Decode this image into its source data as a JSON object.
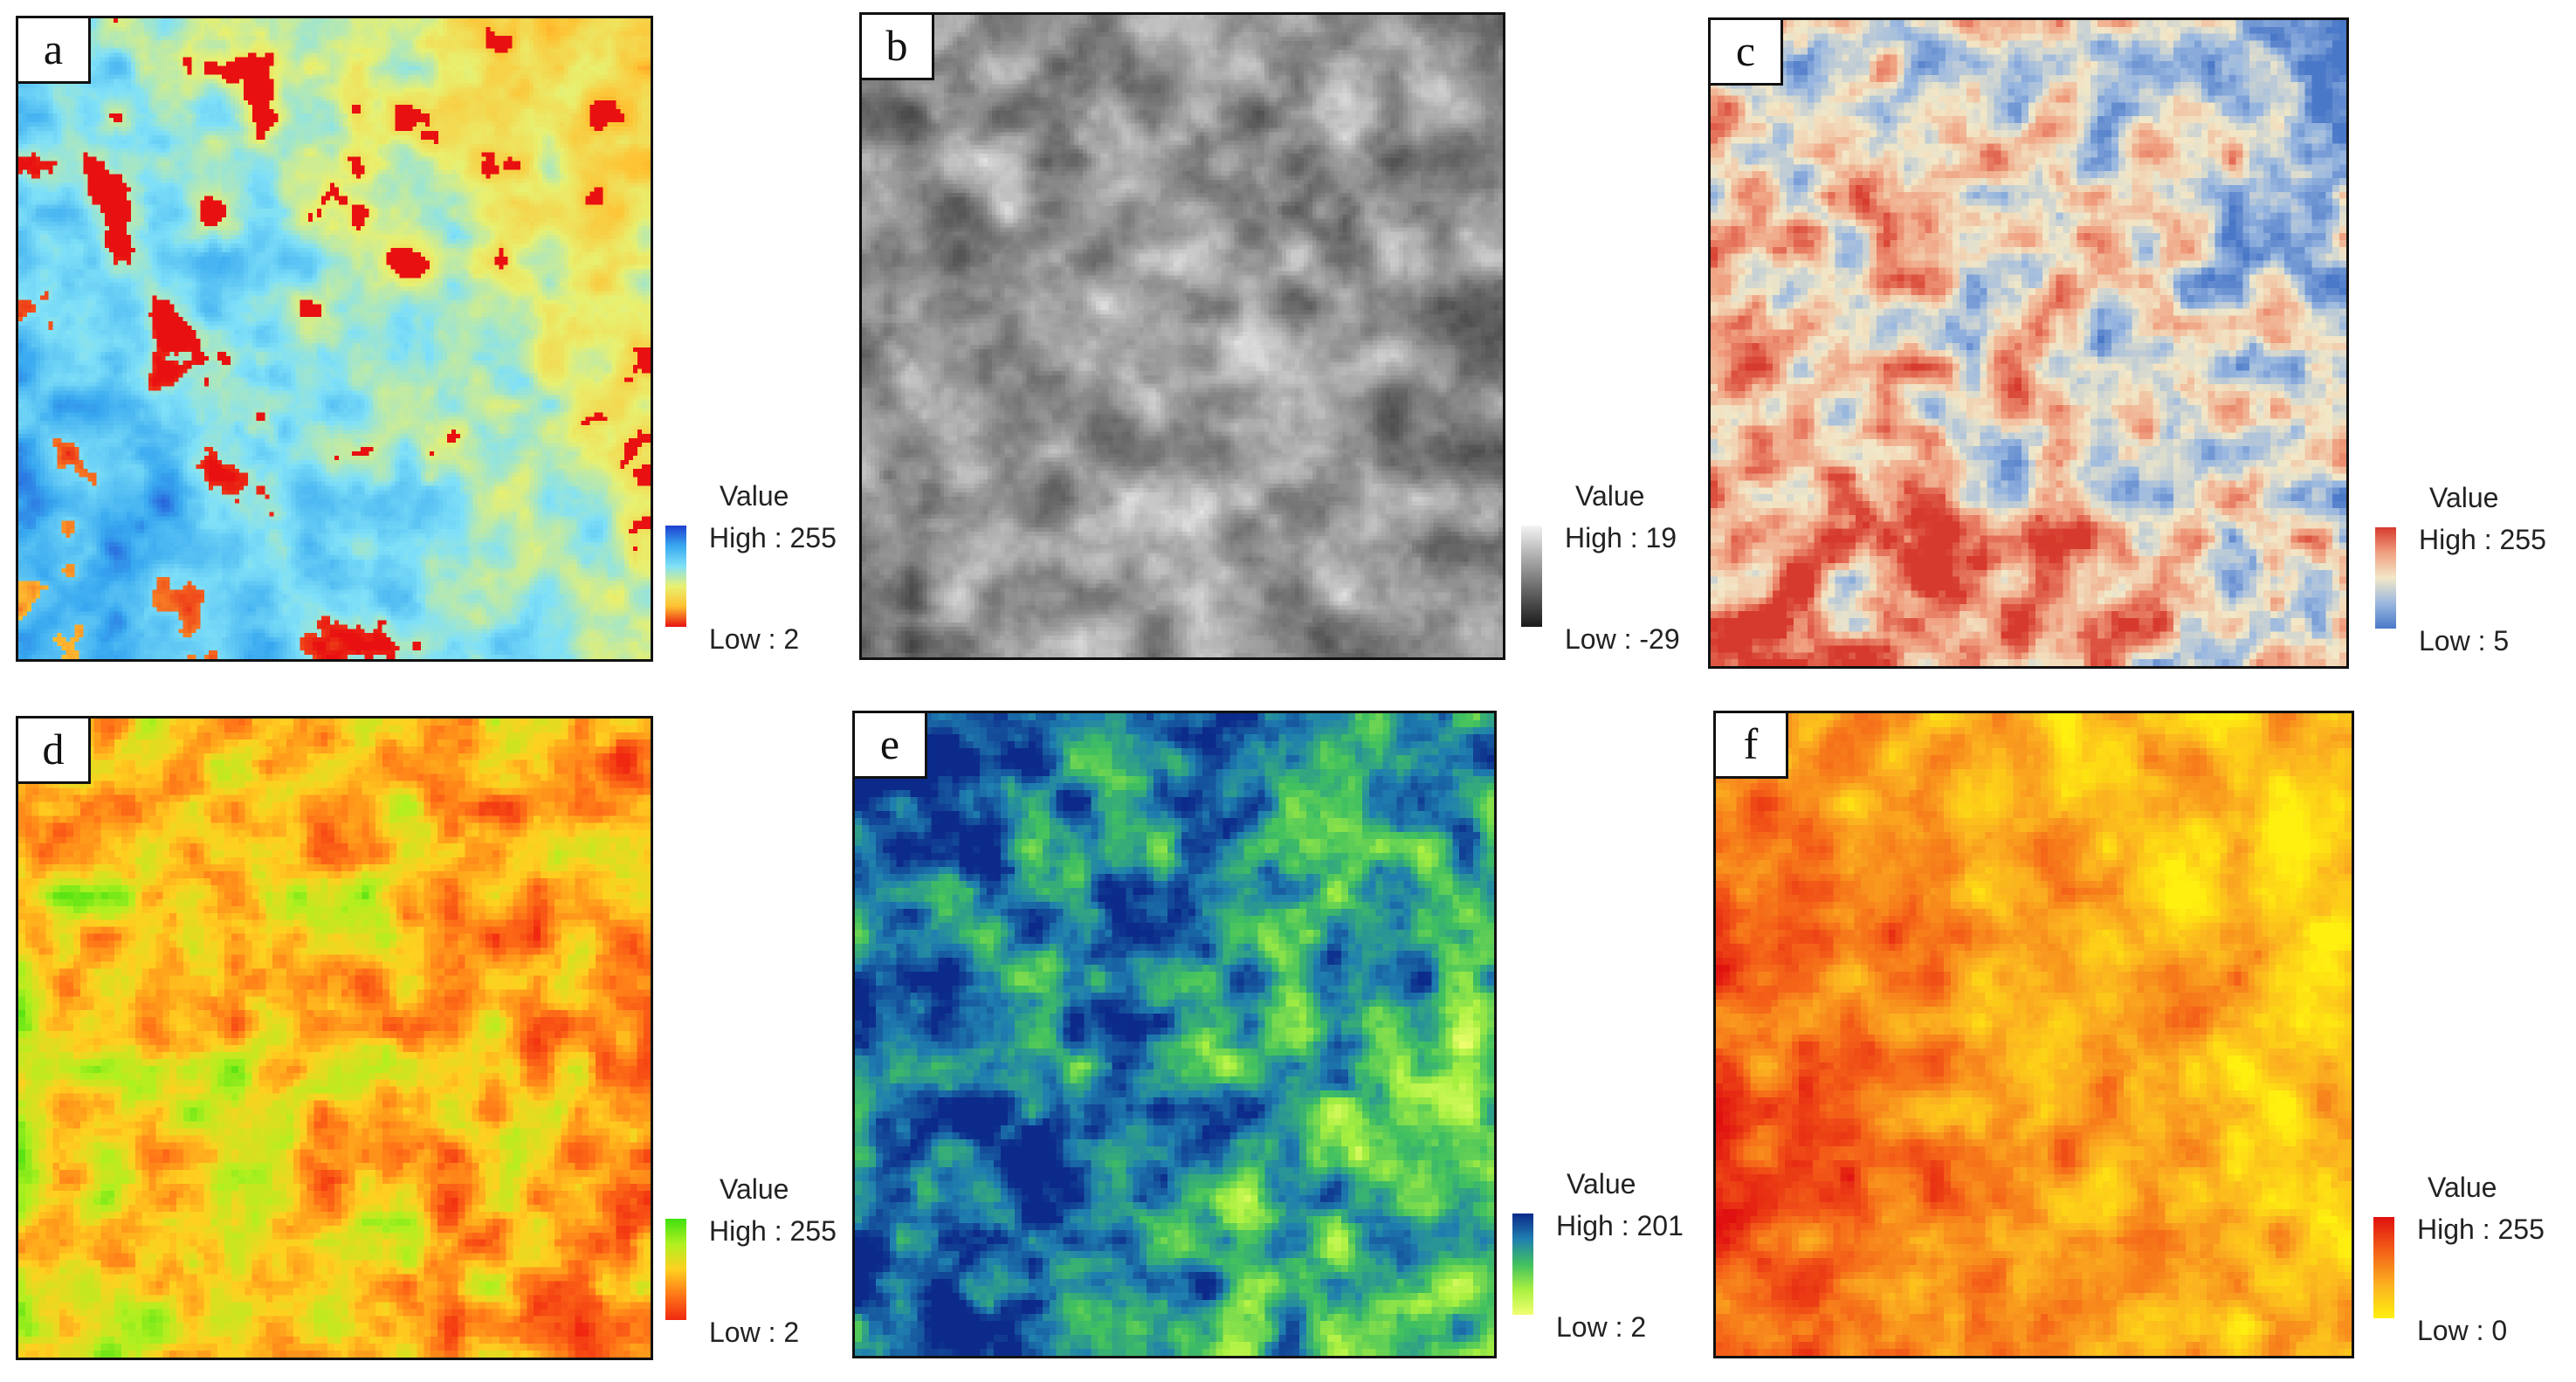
{
  "panels": [
    {
      "label": "a",
      "legend": {
        "title": "Value",
        "high": "High : 255",
        "low": "Low : 2"
      },
      "ramp": [
        "#1e3fd0",
        "#38a8f0",
        "#7fe0f8",
        "#e8f070",
        "#ffc030",
        "#e81010"
      ]
    },
    {
      "label": "b",
      "legend": {
        "title": "Value",
        "high": "High : 19",
        "low": "Low : -29"
      },
      "ramp": [
        "#f4f4f4",
        "#a8a8a8",
        "#606060",
        "#1a1a1a"
      ]
    },
    {
      "label": "c",
      "legend": {
        "title": "Value",
        "high": "High : 255",
        "low": "Low : 5"
      },
      "ramp": [
        "#d63a2c",
        "#f0a080",
        "#f2e8c8",
        "#9ab8e0",
        "#4a78c8"
      ]
    },
    {
      "label": "d",
      "legend": {
        "title": "Value",
        "high": "High : 255",
        "low": "Low : 2"
      },
      "ramp": [
        "#40e010",
        "#b0f020",
        "#ffd020",
        "#ff7818",
        "#f02810"
      ]
    },
    {
      "label": "e",
      "legend": {
        "title": "Value",
        "high": "High : 201",
        "low": "Low : 2"
      },
      "ramp": [
        "#0c2a8a",
        "#1f7fb0",
        "#40c060",
        "#a8f040",
        "#f0ff70"
      ]
    },
    {
      "label": "f",
      "legend": {
        "title": "Value",
        "high": "High : 255",
        "low": "Low : 0"
      },
      "ramp": [
        "#e01010",
        "#f46018",
        "#fbb020",
        "#fff010"
      ]
    }
  ]
}
